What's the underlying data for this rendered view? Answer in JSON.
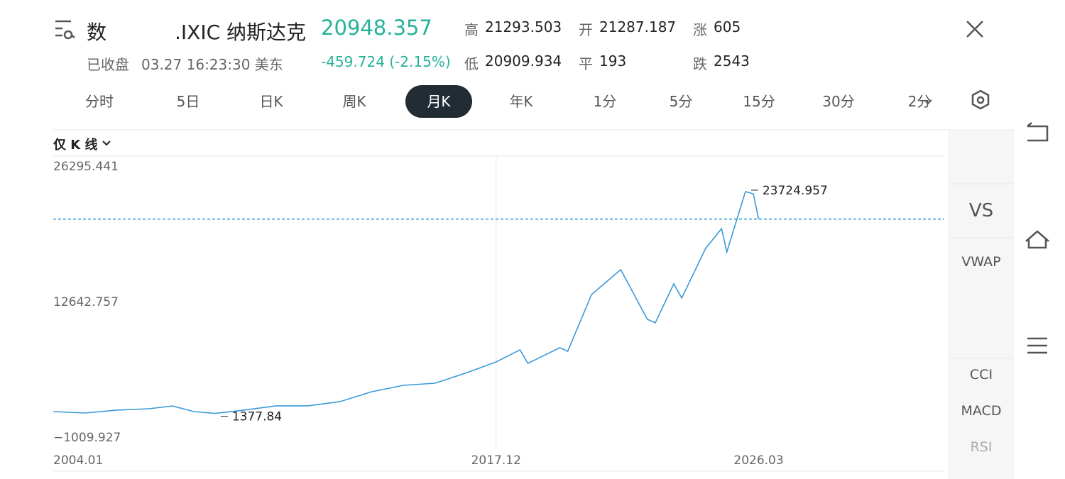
{
  "header": {
    "symbol_prefix": "数",
    "symbol": ".IXIC 纳斯达克",
    "price": "20948.357",
    "change": "-459.724 (-2.15%)",
    "status": "已收盘",
    "time": "03.27 16:23:30 美东",
    "stats": [
      {
        "label": "高",
        "value": "21293.503"
      },
      {
        "label": "开",
        "value": "21287.187"
      },
      {
        "label": "涨",
        "value": "605"
      },
      {
        "label": "低",
        "value": "20909.934"
      },
      {
        "label": "平",
        "value": "193"
      },
      {
        "label": "跌",
        "value": "2543"
      }
    ]
  },
  "tabs": {
    "items": [
      "分时",
      "5日",
      "日K",
      "周K",
      "月K",
      "年K",
      "1分",
      "5分",
      "15分",
      "30分",
      "2分"
    ],
    "active": 4
  },
  "chart_mode": "仅 K 线",
  "side_tools": [
    "VS",
    "VWAP",
    "CCI",
    "MACD",
    "RSI"
  ],
  "chart_data": {
    "type": "line",
    "color": "#3a9ad9",
    "x": [
      "2004.01",
      "2005.01",
      "2006.01",
      "2007.01",
      "2007.10",
      "2008.06",
      "2009.02",
      "2010.01",
      "2011.01",
      "2012.01",
      "2013.01",
      "2014.01",
      "2015.01",
      "2016.01",
      "2017.01",
      "2017.12",
      "2018.09",
      "2018.12",
      "2019.12",
      "2020.03",
      "2020.12",
      "2021.11",
      "2022.09",
      "2022.12",
      "2023.07",
      "2023.10",
      "2024.07",
      "2025.01",
      "2025.03",
      "2025.10",
      "2026.01",
      "2026.03"
    ],
    "values": [
      1560,
      1420,
      1710,
      1850,
      2130,
      1560,
      1377.84,
      1710,
      2140,
      2140,
      2560,
      3560,
      4210,
      4420,
      5490,
      6570,
      7780,
      6420,
      8000,
      7640,
      13360,
      15860,
      10860,
      10500,
      14430,
      13000,
      18000,
      19990,
      17640,
      23724.957,
      23500,
      20948.357
    ],
    "xlim": [
      "2004.01",
      "2032.01"
    ],
    "xticks": [
      "2004.01",
      "2017.12",
      "2026.03"
    ],
    "ylim": [
      -1009.927,
      26295.441
    ],
    "yticks": [
      {
        "value": -1009.927,
        "label": "−1009.927"
      },
      12642.757,
      26295.441
    ],
    "min_index": 6,
    "max_index": 29
  }
}
